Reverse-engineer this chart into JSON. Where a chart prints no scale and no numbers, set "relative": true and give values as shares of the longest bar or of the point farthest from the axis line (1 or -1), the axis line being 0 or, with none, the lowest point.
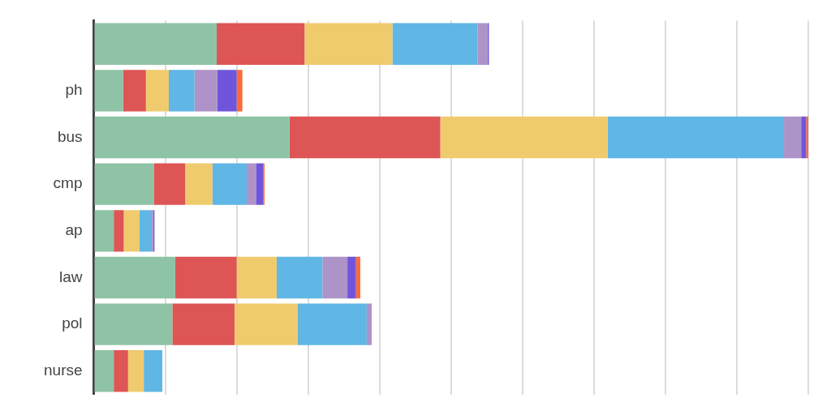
{
  "chart_data": {
    "type": "bar",
    "orientation": "horizontal",
    "stacked": true,
    "relative": true,
    "grid": "x",
    "legend": false,
    "categories": [
      null,
      "ph",
      "bus",
      "cmp",
      "ap",
      "law",
      "pol",
      "nurse"
    ],
    "series": [
      {
        "color": "#8fc3a6",
        "values": [
          0.172,
          0.041,
          0.274,
          0.084,
          0.028,
          0.114,
          0.11,
          0.028
        ]
      },
      {
        "color": "#dd5555",
        "values": [
          0.123,
          0.032,
          0.211,
          0.044,
          0.014,
          0.086,
          0.087,
          0.02
        ]
      },
      {
        "color": "#efcb6d",
        "values": [
          0.123,
          0.032,
          0.234,
          0.038,
          0.022,
          0.056,
          0.088,
          0.022
        ]
      },
      {
        "color": "#60b6e4",
        "values": [
          0.119,
          0.036,
          0.247,
          0.048,
          0.016,
          0.064,
          0.097,
          0.026
        ]
      },
      {
        "color": "#ad93c8",
        "values": [
          0.014,
          0.032,
          0.024,
          0.013,
          0.003,
          0.035,
          0.007,
          0
        ]
      },
      {
        "color": "#7055dc",
        "values": [
          0.002,
          0.027,
          0.007,
          0.01,
          0.002,
          0.012,
          0,
          0
        ]
      },
      {
        "color": "#fd6a38",
        "values": [
          0,
          0.008,
          0.003,
          0.002,
          0,
          0.006,
          0,
          0
        ]
      }
    ]
  }
}
